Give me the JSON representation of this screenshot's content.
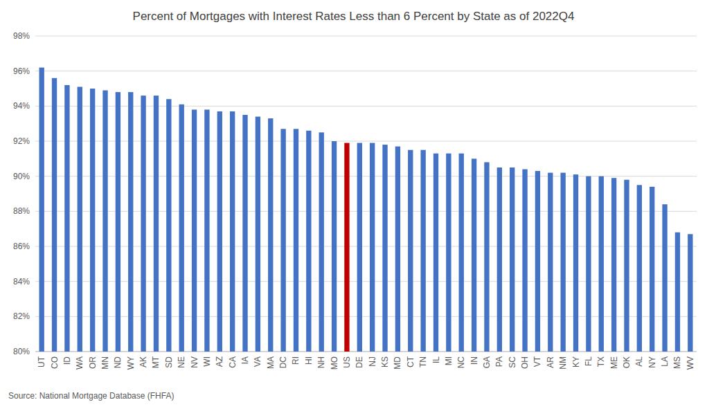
{
  "chart_data": {
    "type": "bar",
    "title": "Percent of Mortgages with Interest Rates Less than 6 Percent by State as of 2022Q4",
    "source": "Source: National Mortgage Database (FHFA)",
    "categories": [
      "UT",
      "CO",
      "ID",
      "WA",
      "OR",
      "MN",
      "ND",
      "WY",
      "AK",
      "MT",
      "SD",
      "NE",
      "NV",
      "WI",
      "AZ",
      "CA",
      "IA",
      "VA",
      "MA",
      "DC",
      "RI",
      "HI",
      "NH",
      "MO",
      "US",
      "DE",
      "NJ",
      "KS",
      "MD",
      "CT",
      "TN",
      "IL",
      "MI",
      "NC",
      "IN",
      "GA",
      "PA",
      "SC",
      "OH",
      "VT",
      "AR",
      "NM",
      "KY",
      "FL",
      "TX",
      "ME",
      "OK",
      "AL",
      "NY",
      "LA",
      "MS",
      "WV"
    ],
    "values": [
      96.2,
      95.6,
      95.2,
      95.1,
      95.0,
      94.9,
      94.8,
      94.8,
      94.6,
      94.6,
      94.4,
      94.1,
      93.8,
      93.8,
      93.7,
      93.7,
      93.5,
      93.4,
      93.3,
      92.7,
      92.7,
      92.6,
      92.5,
      92.0,
      91.9,
      91.9,
      91.9,
      91.8,
      91.7,
      91.5,
      91.5,
      91.3,
      91.3,
      91.3,
      91.0,
      90.8,
      90.5,
      90.5,
      90.4,
      90.3,
      90.2,
      90.2,
      90.1,
      90.0,
      90.0,
      89.9,
      89.8,
      89.5,
      89.4,
      88.4,
      86.8,
      86.7
    ],
    "colors": [
      "#4472c4",
      "#4472c4",
      "#4472c4",
      "#4472c4",
      "#4472c4",
      "#4472c4",
      "#4472c4",
      "#4472c4",
      "#4472c4",
      "#4472c4",
      "#4472c4",
      "#4472c4",
      "#4472c4",
      "#4472c4",
      "#4472c4",
      "#4472c4",
      "#4472c4",
      "#4472c4",
      "#4472c4",
      "#4472c4",
      "#4472c4",
      "#4472c4",
      "#4472c4",
      "#4472c4",
      "#c00000",
      "#4472c4",
      "#4472c4",
      "#4472c4",
      "#4472c4",
      "#4472c4",
      "#4472c4",
      "#4472c4",
      "#4472c4",
      "#4472c4",
      "#4472c4",
      "#4472c4",
      "#4472c4",
      "#4472c4",
      "#4472c4",
      "#4472c4",
      "#4472c4",
      "#4472c4",
      "#4472c4",
      "#4472c4",
      "#4472c4",
      "#4472c4",
      "#4472c4",
      "#4472c4",
      "#4472c4",
      "#4472c4",
      "#4472c4",
      "#4472c4"
    ],
    "ylim": [
      80,
      98
    ],
    "yticks": [
      {
        "value": 80,
        "label": "80%"
      },
      {
        "value": 82,
        "label": "82%"
      },
      {
        "value": 84,
        "label": "84%"
      },
      {
        "value": 86,
        "label": "86%"
      },
      {
        "value": 88,
        "label": "88%"
      },
      {
        "value": 90,
        "label": "90%"
      },
      {
        "value": 92,
        "label": "92%"
      },
      {
        "value": 94,
        "label": "94%"
      },
      {
        "value": 96,
        "label": "96%"
      },
      {
        "value": 98,
        "label": "98%"
      }
    ],
    "grid": true
  }
}
